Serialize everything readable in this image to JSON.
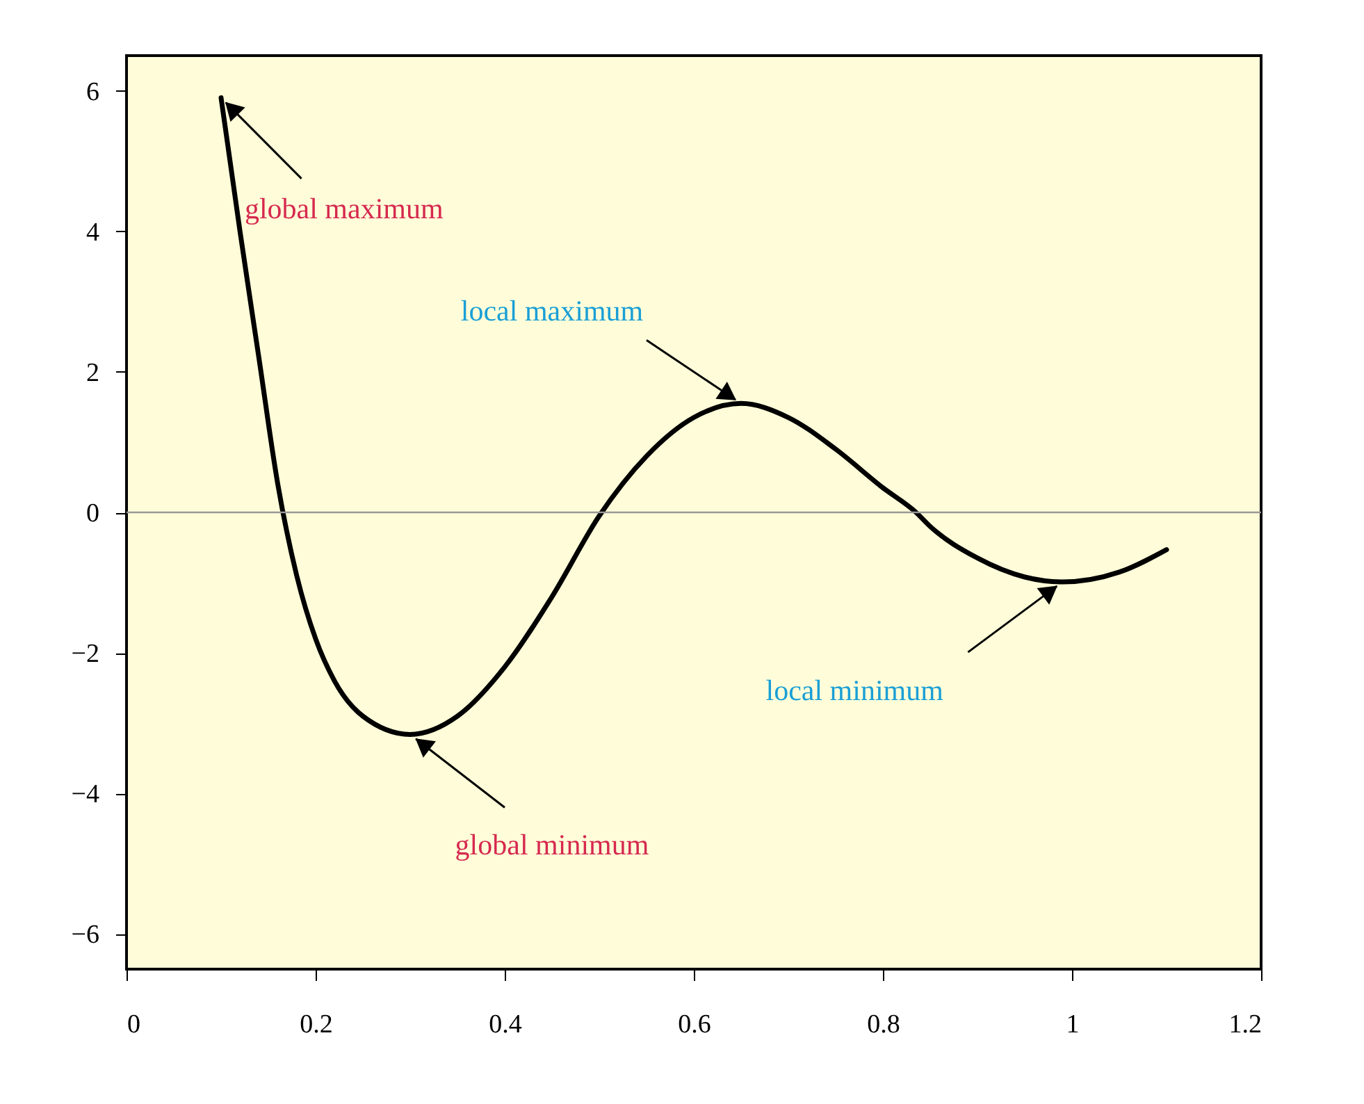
{
  "chart_data": {
    "type": "line",
    "x": [
      0.1,
      0.12,
      0.14,
      0.16,
      0.18,
      0.2,
      0.22,
      0.25,
      0.3,
      0.35,
      0.4,
      0.45,
      0.5,
      0.55,
      0.6,
      0.65,
      0.7,
      0.75,
      0.8,
      0.835,
      0.85,
      0.9,
      0.95,
      0.99,
      1.05,
      1.1
    ],
    "series": [
      {
        "color": "#000000",
        "values": [
          5.9,
          4.0,
          2.2,
          0.4,
          -0.9,
          -1.8,
          -2.4,
          -2.9,
          -3.16,
          -2.9,
          -2.2,
          -1.2,
          -0.05,
          0.8,
          1.35,
          1.55,
          1.35,
          0.9,
          0.35,
          0.0,
          -0.2,
          -0.65,
          -0.92,
          -0.99,
          -0.85,
          -0.53
        ]
      }
    ],
    "xlim": [
      0,
      1.2
    ],
    "xticks": [
      0,
      0.2,
      0.4,
      0.6,
      0.8,
      1,
      1.2
    ],
    "ylim": [
      -6.5,
      6.5
    ],
    "yticks": [
      -6,
      -4,
      -2,
      0,
      2,
      4,
      6
    ],
    "grid": false,
    "marker": "none",
    "line_style": "solid",
    "ref_lines": [
      {
        "axis": "y",
        "value": 0,
        "color": "#999999"
      }
    ],
    "annotations": [
      {
        "text": "global maximum",
        "x": 0.1,
        "y": 5.9
      },
      {
        "text": "local maximum",
        "x": 0.65,
        "y": 1.55
      },
      {
        "text": "global minimum",
        "x": 0.3,
        "y": -3.16
      },
      {
        "text": "local minimum",
        "x": 0.99,
        "y": -0.99
      }
    ]
  }
}
